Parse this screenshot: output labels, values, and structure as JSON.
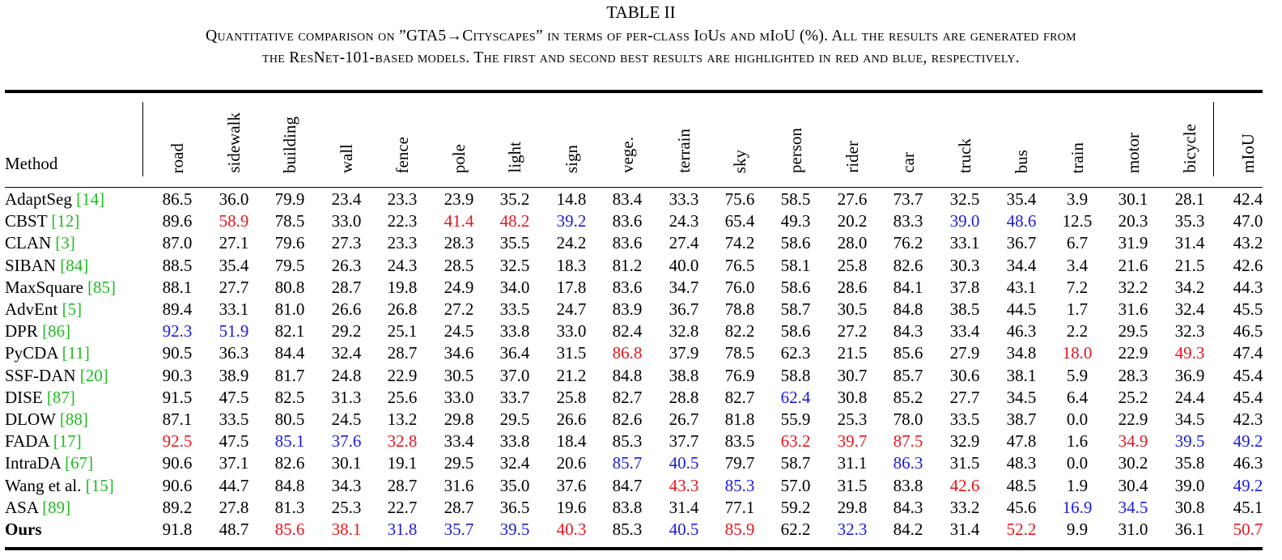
{
  "table": {
    "title": "TABLE II",
    "caption_line1": "Quantitative comparison on ”GTA5→Cityscapes” in terms of per-class IoUs and mIoU (%). All the results are generated from",
    "caption_line2": "the ResNet-101-based models. The first and second best results are highlighted in red and blue, respectively.",
    "method_header": "Method",
    "columns": [
      "road",
      "sidewalk",
      "building",
      "wall",
      "fence",
      "pole",
      "light",
      "sign",
      "vege.",
      "terrain",
      "sky",
      "person",
      "rider",
      "car",
      "truck",
      "bus",
      "train",
      "motor",
      "bicycle",
      "mIoU"
    ],
    "highlight_colors": {
      "first": "#e8141c",
      "second": "#1a1adc"
    },
    "rows": [
      {
        "method": "AdaptSeg",
        "cite": "14",
        "bold": false,
        "values": [
          "86.5",
          "36.0",
          "79.9",
          "23.4",
          "23.3",
          "23.9",
          "35.2",
          "14.8",
          "83.4",
          "33.3",
          "75.6",
          "58.5",
          "27.6",
          "73.7",
          "32.5",
          "35.4",
          "3.9",
          "30.1",
          "28.1",
          "42.4"
        ],
        "marks": [
          "",
          "",
          "",
          "",
          "",
          "",
          "",
          "",
          "",
          "",
          "",
          "",
          "",
          "",
          "",
          "",
          "",
          "",
          "",
          ""
        ]
      },
      {
        "method": "CBST",
        "cite": "12",
        "bold": false,
        "values": [
          "89.6",
          "58.9",
          "78.5",
          "33.0",
          "22.3",
          "41.4",
          "48.2",
          "39.2",
          "83.6",
          "24.3",
          "65.4",
          "49.3",
          "20.2",
          "83.3",
          "39.0",
          "48.6",
          "12.5",
          "20.3",
          "35.3",
          "47.0"
        ],
        "marks": [
          "",
          "first",
          "",
          "",
          "",
          "first",
          "first",
          "second",
          "",
          "",
          "",
          "",
          "",
          "",
          "second",
          "second",
          "",
          "",
          "",
          ""
        ]
      },
      {
        "method": "CLAN",
        "cite": "3",
        "bold": false,
        "values": [
          "87.0",
          "27.1",
          "79.6",
          "27.3",
          "23.3",
          "28.3",
          "35.5",
          "24.2",
          "83.6",
          "27.4",
          "74.2",
          "58.6",
          "28.0",
          "76.2",
          "33.1",
          "36.7",
          "6.7",
          "31.9",
          "31.4",
          "43.2"
        ],
        "marks": [
          "",
          "",
          "",
          "",
          "",
          "",
          "",
          "",
          "",
          "",
          "",
          "",
          "",
          "",
          "",
          "",
          "",
          "",
          "",
          ""
        ]
      },
      {
        "method": "SIBAN",
        "cite": "84",
        "bold": false,
        "values": [
          "88.5",
          "35.4",
          "79.5",
          "26.3",
          "24.3",
          "28.5",
          "32.5",
          "18.3",
          "81.2",
          "40.0",
          "76.5",
          "58.1",
          "25.8",
          "82.6",
          "30.3",
          "34.4",
          "3.4",
          "21.6",
          "21.5",
          "42.6"
        ],
        "marks": [
          "",
          "",
          "",
          "",
          "",
          "",
          "",
          "",
          "",
          "",
          "",
          "",
          "",
          "",
          "",
          "",
          "",
          "",
          "",
          ""
        ]
      },
      {
        "method": "MaxSquare",
        "cite": "85",
        "bold": false,
        "values": [
          "88.1",
          "27.7",
          "80.8",
          "28.7",
          "19.8",
          "24.9",
          "34.0",
          "17.8",
          "83.6",
          "34.7",
          "76.0",
          "58.6",
          "28.6",
          "84.1",
          "37.8",
          "43.1",
          "7.2",
          "32.2",
          "34.2",
          "44.3"
        ],
        "marks": [
          "",
          "",
          "",
          "",
          "",
          "",
          "",
          "",
          "",
          "",
          "",
          "",
          "",
          "",
          "",
          "",
          "",
          "",
          "",
          ""
        ]
      },
      {
        "method": "AdvEnt",
        "cite": "5",
        "bold": false,
        "values": [
          "89.4",
          "33.1",
          "81.0",
          "26.6",
          "26.8",
          "27.2",
          "33.5",
          "24.7",
          "83.9",
          "36.7",
          "78.8",
          "58.7",
          "30.5",
          "84.8",
          "38.5",
          "44.5",
          "1.7",
          "31.6",
          "32.4",
          "45.5"
        ],
        "marks": [
          "",
          "",
          "",
          "",
          "",
          "",
          "",
          "",
          "",
          "",
          "",
          "",
          "",
          "",
          "",
          "",
          "",
          "",
          "",
          ""
        ]
      },
      {
        "method": "DPR",
        "cite": "86",
        "bold": false,
        "values": [
          "92.3",
          "51.9",
          "82.1",
          "29.2",
          "25.1",
          "24.5",
          "33.8",
          "33.0",
          "82.4",
          "32.8",
          "82.2",
          "58.6",
          "27.2",
          "84.3",
          "33.4",
          "46.3",
          "2.2",
          "29.5",
          "32.3",
          "46.5"
        ],
        "marks": [
          "second",
          "second",
          "",
          "",
          "",
          "",
          "",
          "",
          "",
          "",
          "",
          "",
          "",
          "",
          "",
          "",
          "",
          "",
          "",
          ""
        ]
      },
      {
        "method": "PyCDA",
        "cite": "11",
        "bold": false,
        "values": [
          "90.5",
          "36.3",
          "84.4",
          "32.4",
          "28.7",
          "34.6",
          "36.4",
          "31.5",
          "86.8",
          "37.9",
          "78.5",
          "62.3",
          "21.5",
          "85.6",
          "27.9",
          "34.8",
          "18.0",
          "22.9",
          "49.3",
          "47.4"
        ],
        "marks": [
          "",
          "",
          "",
          "",
          "",
          "",
          "",
          "",
          "first",
          "",
          "",
          "",
          "",
          "",
          "",
          "",
          "first",
          "",
          "first",
          ""
        ]
      },
      {
        "method": "SSF-DAN",
        "cite": "20",
        "bold": false,
        "values": [
          "90.3",
          "38.9",
          "81.7",
          "24.8",
          "22.9",
          "30.5",
          "37.0",
          "21.2",
          "84.8",
          "38.8",
          "76.9",
          "58.8",
          "30.7",
          "85.7",
          "30.6",
          "38.1",
          "5.9",
          "28.3",
          "36.9",
          "45.4"
        ],
        "marks": [
          "",
          "",
          "",
          "",
          "",
          "",
          "",
          "",
          "",
          "",
          "",
          "",
          "",
          "",
          "",
          "",
          "",
          "",
          "",
          ""
        ]
      },
      {
        "method": "DISE",
        "cite": "87",
        "bold": false,
        "values": [
          "91.5",
          "47.5",
          "82.5",
          "31.3",
          "25.6",
          "33.0",
          "33.7",
          "25.8",
          "82.7",
          "28.8",
          "82.7",
          "62.4",
          "30.8",
          "85.2",
          "27.7",
          "34.5",
          "6.4",
          "25.2",
          "24.4",
          "45.4"
        ],
        "marks": [
          "",
          "",
          "",
          "",
          "",
          "",
          "",
          "",
          "",
          "",
          "",
          "second",
          "",
          "",
          "",
          "",
          "",
          "",
          "",
          ""
        ]
      },
      {
        "method": "DLOW",
        "cite": "88",
        "bold": false,
        "values": [
          "87.1",
          "33.5",
          "80.5",
          "24.5",
          "13.2",
          "29.8",
          "29.5",
          "26.6",
          "82.6",
          "26.7",
          "81.8",
          "55.9",
          "25.3",
          "78.0",
          "33.5",
          "38.7",
          "0.0",
          "22.9",
          "34.5",
          "42.3"
        ],
        "marks": [
          "",
          "",
          "",
          "",
          "",
          "",
          "",
          "",
          "",
          "",
          "",
          "",
          "",
          "",
          "",
          "",
          "",
          "",
          "",
          ""
        ]
      },
      {
        "method": "FADA",
        "cite": "17",
        "bold": false,
        "values": [
          "92.5",
          "47.5",
          "85.1",
          "37.6",
          "32.8",
          "33.4",
          "33.8",
          "18.4",
          "85.3",
          "37.7",
          "83.5",
          "63.2",
          "39.7",
          "87.5",
          "32.9",
          "47.8",
          "1.6",
          "34.9",
          "39.5",
          "49.2"
        ],
        "marks": [
          "first",
          "",
          "second",
          "second",
          "first",
          "",
          "",
          "",
          "",
          "",
          "",
          "first",
          "first",
          "first",
          "",
          "",
          "",
          "first",
          "second",
          "second"
        ]
      },
      {
        "method": "IntraDA",
        "cite": "67",
        "bold": false,
        "values": [
          "90.6",
          "37.1",
          "82.6",
          "30.1",
          "19.1",
          "29.5",
          "32.4",
          "20.6",
          "85.7",
          "40.5",
          "79.7",
          "58.7",
          "31.1",
          "86.3",
          "31.5",
          "48.3",
          "0.0",
          "30.2",
          "35.8",
          "46.3"
        ],
        "marks": [
          "",
          "",
          "",
          "",
          "",
          "",
          "",
          "",
          "second",
          "second",
          "",
          "",
          "",
          "second",
          "",
          "",
          "",
          "",
          "",
          ""
        ]
      },
      {
        "method": "Wang et al.",
        "cite": "15",
        "bold": false,
        "values": [
          "90.6",
          "44.7",
          "84.8",
          "34.3",
          "28.7",
          "31.6",
          "35.0",
          "37.6",
          "84.7",
          "43.3",
          "85.3",
          "57.0",
          "31.5",
          "83.8",
          "42.6",
          "48.5",
          "1.9",
          "30.4",
          "39.0",
          "49.2"
        ],
        "marks": [
          "",
          "",
          "",
          "",
          "",
          "",
          "",
          "",
          "",
          "first",
          "second",
          "",
          "",
          "",
          "first",
          "",
          "",
          "",
          "",
          "second"
        ]
      },
      {
        "method": "ASA",
        "cite": "89",
        "bold": false,
        "values": [
          "89.2",
          "27.8",
          "81.3",
          "25.3",
          "22.7",
          "28.7",
          "36.5",
          "19.6",
          "83.8",
          "31.4",
          "77.1",
          "59.2",
          "29.8",
          "84.3",
          "33.2",
          "45.6",
          "16.9",
          "34.5",
          "30.8",
          "45.1"
        ],
        "marks": [
          "",
          "",
          "",
          "",
          "",
          "",
          "",
          "",
          "",
          "",
          "",
          "",
          "",
          "",
          "",
          "",
          "second",
          "second",
          "",
          ""
        ]
      },
      {
        "method": "Ours",
        "cite": "",
        "bold": true,
        "values": [
          "91.8",
          "48.7",
          "85.6",
          "38.1",
          "31.8",
          "35.7",
          "39.5",
          "40.3",
          "85.3",
          "40.5",
          "85.9",
          "62.2",
          "32.3",
          "84.2",
          "31.4",
          "52.2",
          "9.9",
          "31.0",
          "36.1",
          "50.7"
        ],
        "marks": [
          "",
          "",
          "first",
          "first",
          "second",
          "second",
          "second",
          "first",
          "",
          "second",
          "first",
          "",
          "second",
          "",
          "",
          "first",
          "",
          "",
          "",
          "first"
        ]
      }
    ]
  }
}
